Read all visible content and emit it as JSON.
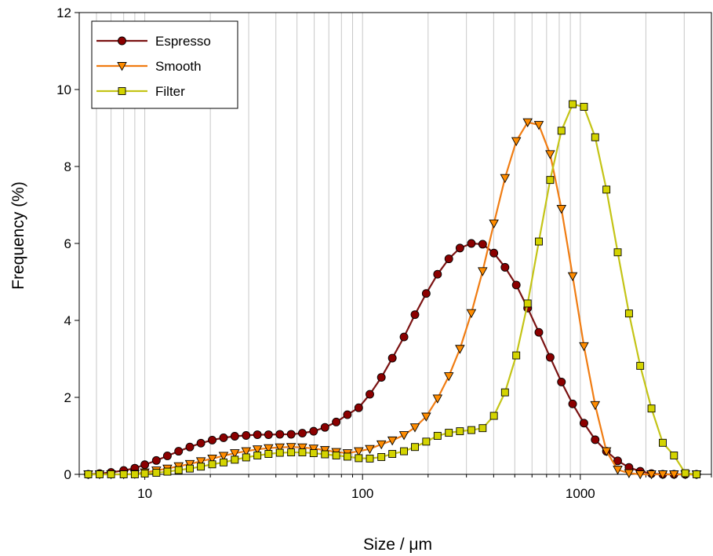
{
  "chart_data": {
    "type": "line",
    "xlabel": "Size / μm",
    "ylabel": "Frequency (%)",
    "x_scale": "log",
    "xlim": [
      5,
      4000
    ],
    "ylim": [
      0,
      12
    ],
    "x_ticks": [
      10,
      100,
      1000
    ],
    "x_tick_labels": [
      "10",
      "100",
      "1000"
    ],
    "y_ticks": [
      0,
      2,
      4,
      6,
      8,
      10,
      12
    ],
    "y_tick_labels": [
      "0",
      "2",
      "4",
      "6",
      "8",
      "10",
      "12"
    ],
    "grid": "vertical-log-minor",
    "legend_position": "top-left",
    "x": [
      5.5,
      6.2,
      7.0,
      8.0,
      9.0,
      10.0,
      11.3,
      12.7,
      14.3,
      16.1,
      18.1,
      20.4,
      23.0,
      25.9,
      29.2,
      32.9,
      37.0,
      41.7,
      47.0,
      52.9,
      59.6,
      67.2,
      75.7,
      85.2,
      96.0,
      108,
      122,
      137,
      155,
      174,
      196,
      221,
      249,
      280,
      316,
      356,
      401,
      451,
      508,
      573,
      645,
      727,
      819,
      922,
      1039,
      1170,
      1318,
      1485,
      1673,
      1884,
      2122,
      2391,
      2693,
      3034,
      3418
    ],
    "series": [
      {
        "name": "Espresso",
        "color": "#8b0000",
        "line_color": "#7b1212",
        "marker": "circle",
        "values": [
          0.0,
          0.02,
          0.05,
          0.1,
          0.16,
          0.25,
          0.36,
          0.48,
          0.6,
          0.71,
          0.81,
          0.89,
          0.95,
          0.99,
          1.01,
          1.03,
          1.03,
          1.04,
          1.04,
          1.07,
          1.12,
          1.22,
          1.36,
          1.55,
          1.73,
          2.08,
          2.52,
          3.02,
          3.57,
          4.15,
          4.7,
          5.2,
          5.6,
          5.88,
          6.0,
          5.98,
          5.75,
          5.38,
          4.92,
          4.32,
          3.69,
          3.04,
          2.4,
          1.83,
          1.33,
          0.9,
          0.6,
          0.35,
          0.18,
          0.08,
          0.02,
          0.0,
          0.0,
          0.0,
          0.0
        ]
      },
      {
        "name": "Smooth",
        "color": "#ff8c00",
        "line_color": "#f07c12",
        "marker": "triangle-down",
        "values": [
          0.0,
          0.0,
          0.0,
          0.0,
          0.01,
          0.05,
          0.1,
          0.15,
          0.21,
          0.27,
          0.34,
          0.41,
          0.48,
          0.55,
          0.6,
          0.65,
          0.68,
          0.7,
          0.71,
          0.7,
          0.67,
          0.63,
          0.58,
          0.55,
          0.6,
          0.66,
          0.78,
          0.88,
          1.02,
          1.22,
          1.5,
          1.97,
          2.55,
          3.26,
          4.19,
          5.28,
          6.52,
          7.7,
          8.66,
          9.15,
          9.08,
          8.32,
          6.9,
          5.15,
          3.33,
          1.8,
          0.6,
          0.12,
          0.03,
          0.0,
          0.0,
          0.0,
          0.0,
          0.0,
          0.0
        ]
      },
      {
        "name": "Filter",
        "color": "#d4d400",
        "line_color": "#c4c416",
        "marker": "square",
        "values": [
          0.0,
          0.0,
          0.0,
          0.0,
          0.0,
          0.02,
          0.04,
          0.07,
          0.11,
          0.15,
          0.2,
          0.26,
          0.31,
          0.38,
          0.44,
          0.49,
          0.53,
          0.56,
          0.57,
          0.57,
          0.55,
          0.52,
          0.49,
          0.46,
          0.42,
          0.41,
          0.45,
          0.53,
          0.6,
          0.71,
          0.85,
          1.0,
          1.08,
          1.12,
          1.15,
          1.2,
          1.52,
          2.13,
          3.09,
          4.44,
          6.05,
          7.65,
          8.93,
          9.62,
          9.55,
          8.76,
          7.4,
          5.77,
          4.18,
          2.82,
          1.71,
          0.82,
          0.49,
          0.03,
          0.0
        ]
      }
    ]
  }
}
